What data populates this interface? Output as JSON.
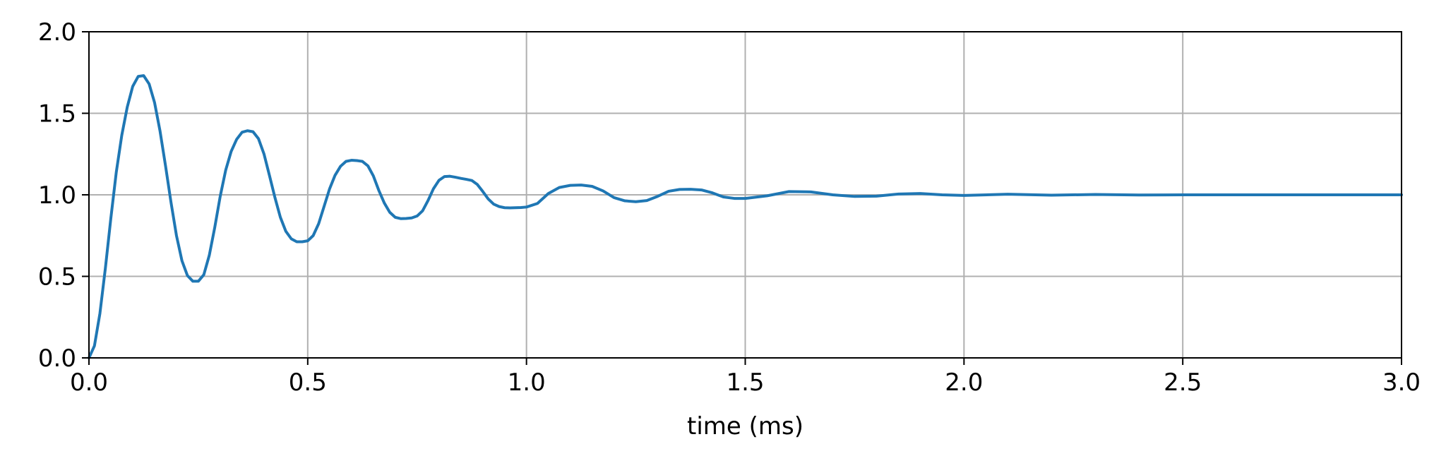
{
  "chart_data": {
    "type": "line",
    "title": "",
    "xlabel": "time (ms)",
    "ylabel": "",
    "xlim": [
      0.0,
      3.0
    ],
    "ylim": [
      0.0,
      2.0
    ],
    "grid": true,
    "legend": "none",
    "x_ticks": [
      "0.0",
      "0.5",
      "1.0",
      "1.5",
      "2.0",
      "2.5",
      "3.0"
    ],
    "y_ticks": [
      "0.0",
      "0.5",
      "1.0",
      "1.5",
      "2.0"
    ],
    "colors": {
      "series": "#1f77b4",
      "grid": "#b0b0b0",
      "axes": "#000000"
    },
    "series": [
      {
        "x": [
          0,
          0.0125,
          0.025,
          0.0375,
          0.05,
          0.0625,
          0.075,
          0.0875,
          0.1,
          0.1125,
          0.125,
          0.1375,
          0.15,
          0.1625,
          0.175,
          0.1875,
          0.2,
          0.2125,
          0.225,
          0.2375,
          0.25,
          0.2625,
          0.275,
          0.2875,
          0.3,
          0.3125,
          0.325,
          0.3375,
          0.35,
          0.3625,
          0.375,
          0.3875,
          0.4,
          0.4125,
          0.425,
          0.4375,
          0.45,
          0.4625,
          0.475,
          0.4875,
          0.5,
          0.5125,
          0.525,
          0.5375,
          0.55,
          0.5625,
          0.575,
          0.5875,
          0.6,
          0.6125,
          0.625,
          0.6375,
          0.65,
          0.6625,
          0.675,
          0.6875,
          0.7,
          0.7125,
          0.725,
          0.7375,
          0.75,
          0.7625,
          0.775,
          0.7875,
          0.8,
          0.8125,
          0.825,
          0.8375,
          0.85,
          0.8625,
          0.875,
          0.8875,
          0.9,
          0.9125,
          0.925,
          0.9375,
          0.95,
          0.9625,
          0.975,
          0.9875,
          1.0,
          1.025,
          1.05,
          1.075,
          1.1,
          1.125,
          1.15,
          1.175,
          1.2,
          1.225,
          1.25,
          1.275,
          1.3,
          1.325,
          1.35,
          1.375,
          1.4,
          1.425,
          1.45,
          1.475,
          1.5,
          1.55,
          1.6,
          1.65,
          1.7,
          1.75,
          1.8,
          1.85,
          1.9,
          1.95,
          2.0,
          2.1,
          2.2,
          2.3,
          2.4,
          2.5,
          2.6,
          2.7,
          2.8,
          2.9,
          3.0
        ],
        "y": [
          0.0,
          0.074,
          0.272,
          0.55,
          0.856,
          1.14,
          1.365,
          1.538,
          1.665,
          1.726,
          1.731,
          1.68,
          1.565,
          1.39,
          1.178,
          0.954,
          0.75,
          0.596,
          0.505,
          0.47,
          0.47,
          0.51,
          0.629,
          0.8,
          0.991,
          1.151,
          1.266,
          1.34,
          1.384,
          1.393,
          1.387,
          1.344,
          1.251,
          1.119,
          0.984,
          0.862,
          0.776,
          0.73,
          0.712,
          0.712,
          0.718,
          0.75,
          0.823,
          0.93,
          1.037,
          1.12,
          1.175,
          1.205,
          1.212,
          1.21,
          1.205,
          1.178,
          1.116,
          1.027,
          0.95,
          0.893,
          0.862,
          0.854,
          0.855,
          0.858,
          0.87,
          0.902,
          0.965,
          1.038,
          1.089,
          1.112,
          1.114,
          1.108,
          1.101,
          1.095,
          1.088,
          1.064,
          1.021,
          0.975,
          0.943,
          0.928,
          0.921,
          0.92,
          0.921,
          0.922,
          0.925,
          0.947,
          1.008,
          1.045,
          1.058,
          1.06,
          1.052,
          1.024,
          0.983,
          0.963,
          0.958,
          0.965,
          0.991,
          1.022,
          1.033,
          1.034,
          1.03,
          1.012,
          0.987,
          0.978,
          0.978,
          0.994,
          1.02,
          1.018,
          1.0,
          0.99,
          0.992,
          1.005,
          1.008,
          1.0,
          0.996,
          1.004,
          0.998,
          1.002,
          0.999,
          1.0,
          1.0,
          1.0,
          1.0,
          1.0,
          1.0
        ]
      }
    ]
  }
}
